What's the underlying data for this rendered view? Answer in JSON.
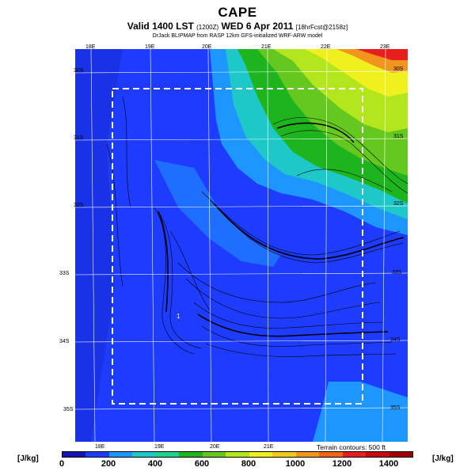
{
  "header": {
    "title": "CAPE",
    "subtitle_main": "Valid 1400 LST",
    "subtitle_small1": "(1200Z)",
    "subtitle_date": "WED 6 Apr 2011",
    "subtitle_small2": "[18hrFcst@2158z]",
    "credit": "DrJack BLIPMAP from RASP 12km GFS-initialized WRF-ARW model"
  },
  "map": {
    "top_longitudes": [
      "18E",
      "19E",
      "20E",
      "21E",
      "22E",
      "23E"
    ],
    "bottom_longitudes": [
      "18E",
      "19E",
      "20E",
      "21E"
    ],
    "left_latitudes": [
      "30S",
      "31S",
      "32S",
      "33S",
      "34S",
      "35S"
    ],
    "right_latitudes": [
      "30S",
      "31S",
      "32S",
      "33S",
      "34S",
      "35S"
    ],
    "terrain_note": "Terrain contours: 500 ft",
    "marker_label": "1"
  },
  "legend": {
    "unit_left": "[J/kg]",
    "unit_right": "[J/kg]",
    "labels": [
      "0",
      "200",
      "400",
      "600",
      "800",
      "1000",
      "1200",
      "1400"
    ],
    "colors": [
      "#1414b4",
      "#1e3cff",
      "#1e96ff",
      "#1ec8c8",
      "#1ed28c",
      "#1eb41e",
      "#64c81e",
      "#b4e61e",
      "#f0f01e",
      "#f0c81e",
      "#f0961e",
      "#f06414",
      "#e61e1e",
      "#c80a0a",
      "#a00000"
    ]
  }
}
